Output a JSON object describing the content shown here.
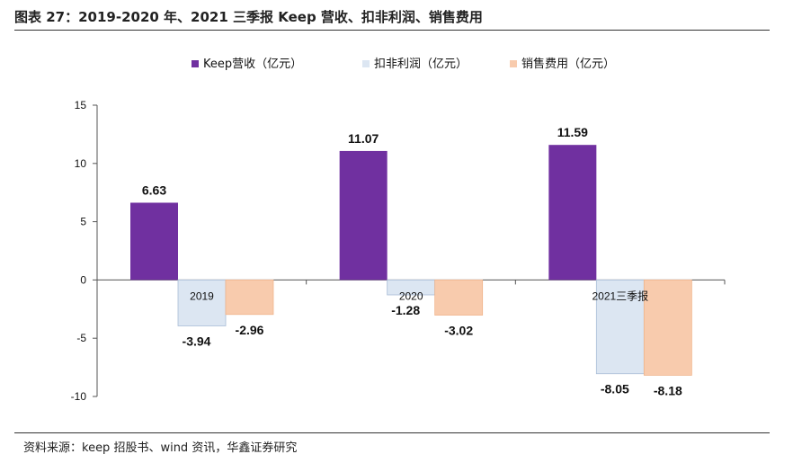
{
  "title": "图表 27：2019-2020 年、2021 三季报 Keep 营收、扣非利润、销售费用",
  "source": "资料来源：keep 招股书、wind 资讯，华鑫证券研究",
  "chart_data": {
    "type": "bar",
    "categories": [
      "2019",
      "2020",
      "2021三季报"
    ],
    "series": [
      {
        "name": "Keep营收（亿元）",
        "values": [
          6.63,
          11.07,
          11.59
        ],
        "color": "#7030A0"
      },
      {
        "name": "扣非利润（亿元）",
        "values": [
          -3.94,
          -1.28,
          -8.05
        ],
        "color": "#DCE6F2"
      },
      {
        "name": "销售费用（亿元）",
        "values": [
          -2.96,
          -3.02,
          -8.18
        ],
        "color": "#F8CBAD"
      }
    ],
    "value_labels": [
      [
        "6.63",
        "11.07",
        "11.59"
      ],
      [
        "-3.94",
        "-1.28",
        "-8.05"
      ],
      [
        "-2.96",
        "-3.02",
        "-8.18"
      ]
    ],
    "y_ticks": [
      "15",
      "10",
      "5",
      "0",
      "-5",
      "-10"
    ],
    "ylim": [
      -10,
      15
    ],
    "grid": false,
    "legend_position": "top"
  }
}
